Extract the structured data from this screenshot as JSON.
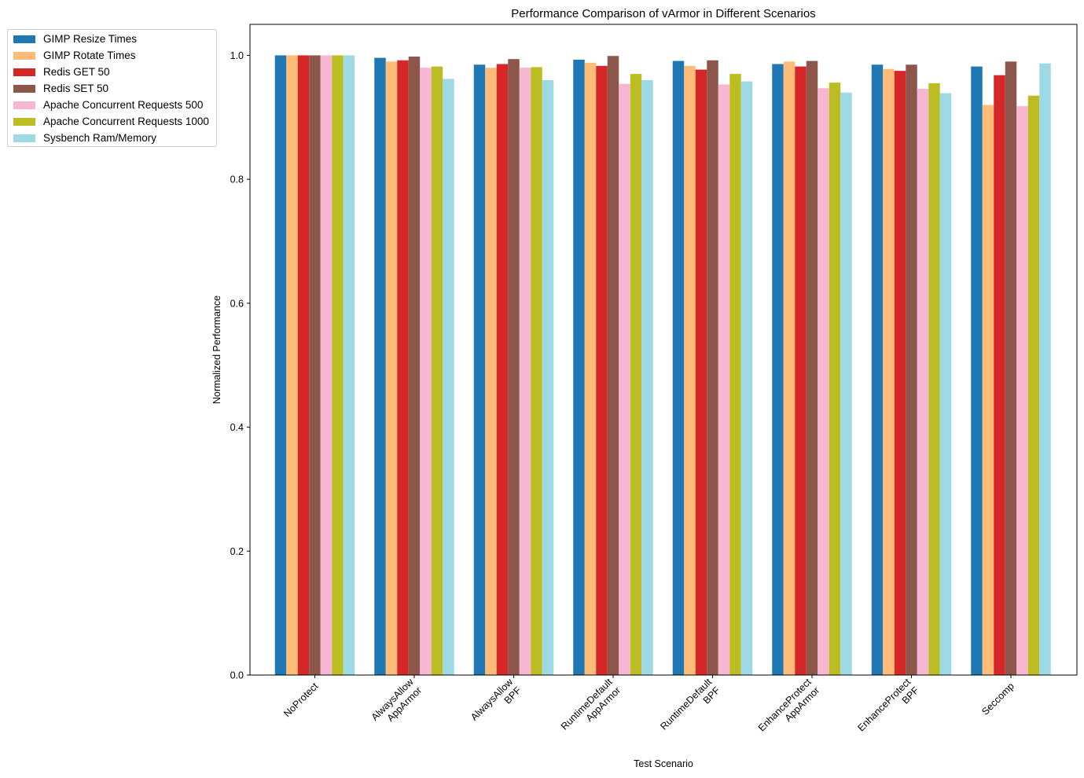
{
  "chart_data": {
    "type": "bar",
    "title": "Performance Comparison of vArmor in Different Scenarios",
    "xlabel": "Test Scenario",
    "ylabel": "Normalized Performance",
    "ylim": [
      0,
      1.05
    ],
    "yticks": [
      "0.0",
      "0.2",
      "0.4",
      "0.6",
      "0.8",
      "1.0"
    ],
    "grid": false,
    "legend_position": "outside-top-left",
    "categories": [
      [
        "NoProtect"
      ],
      [
        "AlwaysAllow",
        "AppArmor"
      ],
      [
        "AlwaysAllow",
        "BPF"
      ],
      [
        "RuntimeDefault",
        "AppArmor"
      ],
      [
        "RuntimeDefault",
        "BPF"
      ],
      [
        "EnhanceProtect",
        "AppArmor"
      ],
      [
        "EnhanceProtect",
        "BPF"
      ],
      [
        "Seccomp"
      ]
    ],
    "series": [
      {
        "name": "GIMP Resize Times",
        "color": "#1f77b4",
        "values": [
          1.0,
          0.996,
          0.985,
          0.993,
          0.991,
          0.986,
          0.985,
          0.982
        ]
      },
      {
        "name": "GIMP Rotate Times",
        "color": "#ffbb78",
        "values": [
          1.0,
          0.99,
          0.98,
          0.988,
          0.983,
          0.99,
          0.978,
          0.92
        ]
      },
      {
        "name": "Redis GET 50",
        "color": "#d62728",
        "values": [
          1.0,
          0.992,
          0.986,
          0.983,
          0.977,
          0.982,
          0.975,
          0.968
        ]
      },
      {
        "name": "Redis SET 50",
        "color": "#8c564b",
        "values": [
          1.0,
          0.998,
          0.994,
          0.999,
          0.992,
          0.991,
          0.985,
          0.99
        ]
      },
      {
        "name": "Apache Concurrent Requests 500",
        "color": "#f7b6d2",
        "values": [
          1.0,
          0.98,
          0.98,
          0.954,
          0.953,
          0.947,
          0.946,
          0.918
        ]
      },
      {
        "name": "Apache Concurrent Requests 1000",
        "color": "#bcbd22",
        "values": [
          1.0,
          0.982,
          0.981,
          0.97,
          0.97,
          0.956,
          0.955,
          0.935
        ]
      },
      {
        "name": "Sysbench Ram/Memory",
        "color": "#9edae5",
        "values": [
          1.0,
          0.962,
          0.96,
          0.96,
          0.958,
          0.94,
          0.939,
          0.987
        ]
      }
    ]
  }
}
